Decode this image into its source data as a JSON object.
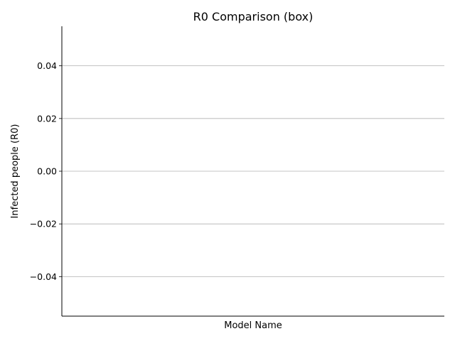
{
  "chart_data": {
    "type": "box",
    "title": "R0 Comparison (box)",
    "xlabel": "Model Name",
    "ylabel": "Infected people (R0)",
    "categories": [],
    "series": [],
    "ylim": [
      -0.055,
      0.055
    ],
    "yticks": [
      -0.04,
      -0.02,
      0.0,
      0.02,
      0.04
    ],
    "ytick_labels": [
      "−0.04",
      "−0.02",
      "0.00",
      "0.02",
      "0.04"
    ],
    "grid": "horizontal",
    "colors": {
      "grid": "#b0b0b0",
      "axis": "#000000",
      "background": "#ffffff"
    }
  }
}
